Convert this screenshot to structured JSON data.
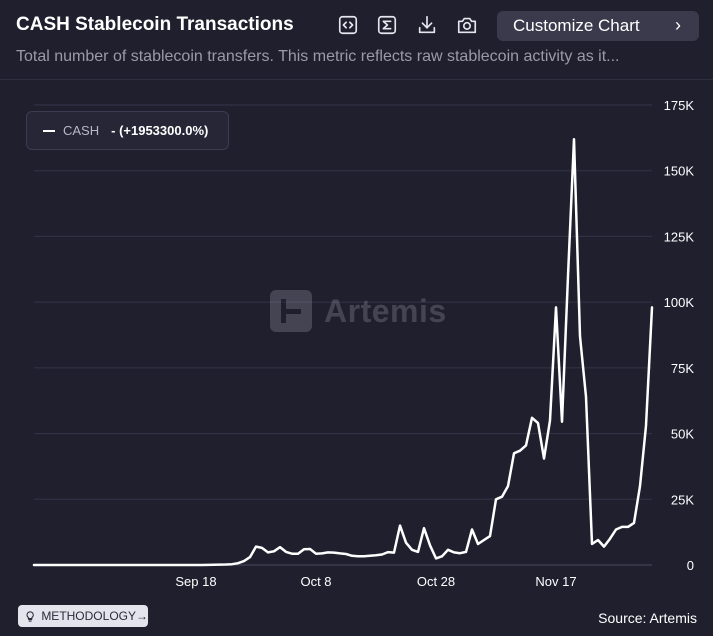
{
  "header": {
    "title": "CASH Stablecoin Transactions",
    "subtitle": "Total number of stablecoin transfers. This metric reflects raw stablecoin activity as it...",
    "customize_label": "Customize Chart",
    "tools": [
      "embed-code-icon",
      "sigma-icon",
      "download-icon",
      "camera-icon"
    ]
  },
  "legend": {
    "name": "CASH",
    "value": "- (+1953300.0%)"
  },
  "watermark": "Artemis",
  "footer": {
    "methodology": "METHODOLOGY",
    "methodology_arrow": "→",
    "source": "Source: Artemis"
  },
  "colors": {
    "background": "#1f1f2e",
    "line": "#ffffff",
    "grid": "#34344a",
    "muted_text": "#9a9aa8"
  },
  "chart_data": {
    "type": "line",
    "title": "CASH Stablecoin Transactions",
    "xlabel": "",
    "ylabel": "",
    "x_tick_labels": [
      "Sep 18",
      "Oct 8",
      "Oct 28",
      "Nov 17"
    ],
    "x_tick_days": [
      27,
      47,
      67,
      87
    ],
    "y_ticks": [
      0,
      25000,
      50000,
      75000,
      100000,
      125000,
      150000,
      175000
    ],
    "y_tick_labels": [
      "0",
      "25K",
      "50K",
      "75K",
      "100K",
      "125K",
      "150K",
      "175K"
    ],
    "ylim": [
      0,
      175000
    ],
    "x_range_days": [
      0,
      102
    ],
    "grid": true,
    "legend_position": "top-left",
    "y_axis_side": "right",
    "series": [
      {
        "name": "CASH",
        "color": "#ffffff",
        "points": [
          [
            0,
            0
          ],
          [
            5,
            0
          ],
          [
            10,
            0
          ],
          [
            15,
            0
          ],
          [
            20,
            0
          ],
          [
            25,
            0
          ],
          [
            28,
            0
          ],
          [
            30,
            100
          ],
          [
            32,
            200
          ],
          [
            33,
            300
          ],
          [
            34,
            700
          ],
          [
            35,
            1500
          ],
          [
            36,
            3000
          ],
          [
            37,
            7000
          ],
          [
            38,
            6500
          ],
          [
            39,
            4800
          ],
          [
            40,
            5200
          ],
          [
            41,
            6800
          ],
          [
            42,
            5000
          ],
          [
            43,
            4300
          ],
          [
            44,
            4300
          ],
          [
            45,
            6000
          ],
          [
            46,
            6100
          ],
          [
            47,
            4300
          ],
          [
            48,
            4400
          ],
          [
            49,
            4800
          ],
          [
            50,
            4700
          ],
          [
            51,
            4400
          ],
          [
            52,
            4200
          ],
          [
            53,
            3500
          ],
          [
            54,
            3300
          ],
          [
            55,
            3300
          ],
          [
            56,
            3500
          ],
          [
            57,
            3700
          ],
          [
            58,
            4000
          ],
          [
            59,
            4900
          ],
          [
            60,
            4700
          ],
          [
            61,
            15000
          ],
          [
            62,
            8500
          ],
          [
            63,
            5800
          ],
          [
            64,
            5000
          ],
          [
            65,
            14000
          ],
          [
            66,
            7500
          ],
          [
            67,
            2500
          ],
          [
            68,
            3300
          ],
          [
            69,
            5800
          ],
          [
            70,
            4800
          ],
          [
            71,
            4500
          ],
          [
            72,
            5000
          ],
          [
            73,
            13500
          ],
          [
            74,
            8000
          ],
          [
            75,
            9500
          ],
          [
            76,
            11000
          ],
          [
            77,
            25000
          ],
          [
            78,
            26000
          ],
          [
            79,
            30000
          ],
          [
            80,
            42500
          ],
          [
            81,
            43500
          ],
          [
            82,
            45500
          ],
          [
            83,
            56000
          ],
          [
            84,
            54000
          ],
          [
            85,
            40500
          ],
          [
            86,
            55000
          ],
          [
            87,
            98000
          ],
          [
            88,
            54500
          ],
          [
            89,
            110000
          ],
          [
            90,
            162000
          ],
          [
            91,
            87000
          ],
          [
            92,
            64000
          ],
          [
            93,
            8000
          ],
          [
            94,
            9500
          ],
          [
            95,
            7000
          ],
          [
            96,
            10000
          ],
          [
            97,
            13500
          ],
          [
            98,
            14500
          ],
          [
            99,
            14500
          ],
          [
            100,
            16000
          ],
          [
            101,
            30000
          ],
          [
            102,
            53000
          ],
          [
            103,
            98000
          ]
        ]
      }
    ]
  }
}
